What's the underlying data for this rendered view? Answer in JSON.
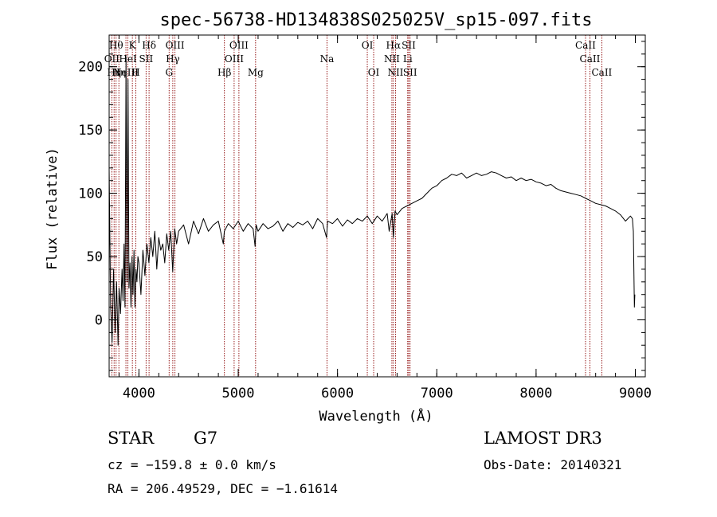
{
  "chart_data": {
    "type": "line",
    "title": "spec-56738-HD134838S025025V_sp15-097.fits",
    "xlabel": "Wavelength (Å)",
    "ylabel": "Flux (relative)",
    "xlim": [
      3700,
      9100
    ],
    "ylim": [
      -45,
      225
    ],
    "x_ticks": [
      4000,
      5000,
      6000,
      7000,
      8000,
      9000
    ],
    "y_ticks": [
      0,
      50,
      100,
      150,
      200
    ],
    "x_minor_step": 200,
    "y_minor_step": 10,
    "series": [
      {
        "name": "flux",
        "x": [
          3700,
          3715,
          3730,
          3745,
          3760,
          3775,
          3790,
          3800,
          3815,
          3830,
          3840,
          3850,
          3860,
          3870,
          3880,
          3890,
          3900,
          3910,
          3920,
          3930,
          3940,
          3950,
          3960,
          3970,
          3980,
          3990,
          4000,
          4020,
          4040,
          4060,
          4080,
          4100,
          4120,
          4140,
          4160,
          4180,
          4200,
          4220,
          4240,
          4260,
          4280,
          4300,
          4320,
          4340,
          4360,
          4380,
          4400,
          4450,
          4500,
          4550,
          4600,
          4650,
          4700,
          4750,
          4800,
          4850,
          4860,
          4900,
          4950,
          5000,
          5050,
          5100,
          5150,
          5170,
          5180,
          5200,
          5250,
          5300,
          5350,
          5400,
          5450,
          5500,
          5550,
          5600,
          5650,
          5700,
          5750,
          5800,
          5850,
          5890,
          5900,
          5950,
          6000,
          6050,
          6100,
          6150,
          6200,
          6250,
          6300,
          6350,
          6400,
          6450,
          6500,
          6520,
          6550,
          6563,
          6580,
          6600,
          6650,
          6700,
          6750,
          6800,
          6850,
          6900,
          6950,
          7000,
          7050,
          7100,
          7150,
          7200,
          7250,
          7300,
          7350,
          7400,
          7450,
          7500,
          7550,
          7600,
          7650,
          7700,
          7750,
          7800,
          7850,
          7900,
          7950,
          8000,
          8050,
          8100,
          8150,
          8200,
          8250,
          8300,
          8350,
          8400,
          8450,
          8500,
          8550,
          8600,
          8650,
          8700,
          8750,
          8800,
          8850,
          8900,
          8950,
          8970,
          8980,
          8990,
          8995
        ],
        "y": [
          120,
          10,
          -18,
          40,
          -10,
          30,
          -20,
          25,
          5,
          40,
          15,
          60,
          10,
          208,
          30,
          190,
          25,
          45,
          10,
          50,
          20,
          55,
          10,
          40,
          30,
          50,
          45,
          20,
          55,
          35,
          60,
          45,
          65,
          50,
          70,
          40,
          65,
          55,
          60,
          45,
          68,
          55,
          70,
          38,
          72,
          60,
          70,
          75,
          60,
          78,
          68,
          80,
          70,
          75,
          78,
          60,
          70,
          76,
          72,
          78,
          70,
          76,
          72,
          58,
          75,
          70,
          76,
          72,
          74,
          78,
          70,
          76,
          73,
          77,
          75,
          78,
          72,
          80,
          76,
          65,
          78,
          76,
          80,
          74,
          79,
          76,
          80,
          78,
          82,
          76,
          82,
          78,
          84,
          70,
          84,
          65,
          86,
          83,
          88,
          90,
          92,
          94,
          96,
          100,
          104,
          106,
          110,
          112,
          115,
          114,
          116,
          112,
          114,
          116,
          114,
          115,
          117,
          116,
          114,
          112,
          113,
          110,
          112,
          110,
          111,
          109,
          108,
          106,
          107,
          104,
          102,
          101,
          100,
          99,
          98,
          96,
          94,
          92,
          91,
          90,
          88,
          86,
          83,
          78,
          82,
          80,
          70,
          10,
          20
        ]
      }
    ],
    "spectral_lines": [
      {
        "wl": 3727,
        "label": "OII",
        "row": 1
      },
      {
        "wl": 3750,
        "label": "Hη",
        "row": 2
      },
      {
        "wl": 3770,
        "label": "Hθ",
        "row": 0
      },
      {
        "wl": 3798,
        "label": "Hη",
        "row": 2
      },
      {
        "wl": 3869,
        "label": "NeIII",
        "row": 2
      },
      {
        "wl": 3889,
        "label": "HeI",
        "row": 1
      },
      {
        "wl": 3934,
        "label": "K",
        "row": 0
      },
      {
        "wl": 3969,
        "label": "H",
        "row": 2
      },
      {
        "wl": 4072,
        "label": "SII",
        "row": 1
      },
      {
        "wl": 4102,
        "label": "Hδ",
        "row": 0
      },
      {
        "wl": 4304,
        "label": "G",
        "row": 2
      },
      {
        "wl": 4341,
        "label": "Hγ",
        "row": 1
      },
      {
        "wl": 4363,
        "label": "OIII",
        "row": 0
      },
      {
        "wl": 4861,
        "label": "Hβ",
        "row": 2
      },
      {
        "wl": 4959,
        "label": "OIII",
        "row": 1
      },
      {
        "wl": 5007,
        "label": "OIII",
        "row": 0
      },
      {
        "wl": 5175,
        "label": "Mg",
        "row": 2
      },
      {
        "wl": 5894,
        "label": "Na",
        "row": 1
      },
      {
        "wl": 6300,
        "label": "OI",
        "row": 0
      },
      {
        "wl": 6364,
        "label": "OI",
        "row": 2
      },
      {
        "wl": 6548,
        "label": "NII",
        "row": 1
      },
      {
        "wl": 6563,
        "label": "Hα",
        "row": 0
      },
      {
        "wl": 6584,
        "label": "NII",
        "row": 2
      },
      {
        "wl": 6707,
        "label": "Li",
        "row": 1
      },
      {
        "wl": 6717,
        "label": "SII",
        "row": 0
      },
      {
        "wl": 6731,
        "label": "SII",
        "row": 2
      },
      {
        "wl": 8498,
        "label": "CaII",
        "row": 0
      },
      {
        "wl": 8542,
        "label": "CaII",
        "row": 1
      },
      {
        "wl": 8662,
        "label": "CaII",
        "row": 2
      }
    ],
    "line_color": "#8b0000",
    "grid": false
  },
  "info": {
    "obj_class": "STAR",
    "subclass": "G7",
    "survey": "LAMOST DR3",
    "cz": "cz = −159.8 ± 0.0 km/s",
    "obs_date": "Obs-Date: 20140321",
    "coords": "RA = 206.49529, DEC =  −1.61614"
  }
}
